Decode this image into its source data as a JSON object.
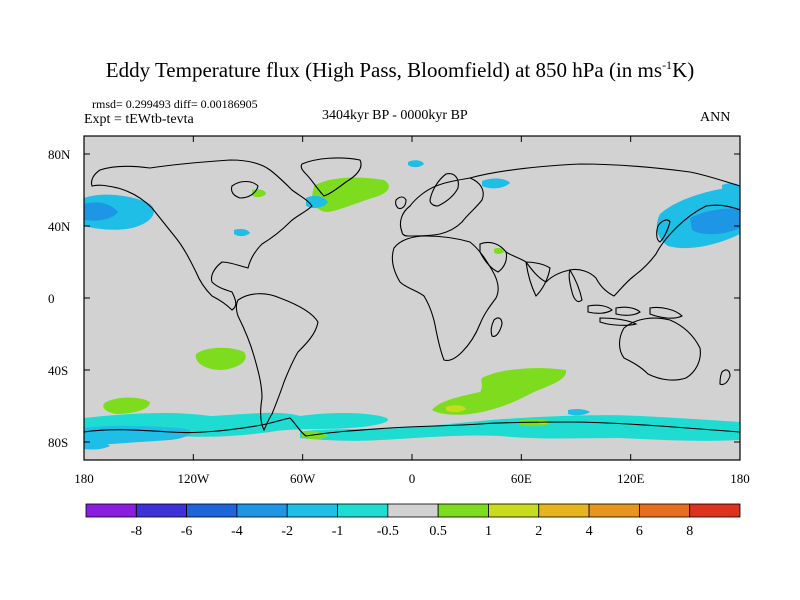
{
  "title_main": "Eddy Temperature flux (High Pass, Bloomfield) at 850 hPa (in ms",
  "title_sup": "-1",
  "title_end": "K)",
  "rmsd_line": "rmsd= 0.299493 diff= 0.00186905",
  "expt_line": "Expt = tEWtb-tevta",
  "period": "3404kyr BP - 0000kyr BP",
  "season": "ANN",
  "lat_labels": [
    "80N",
    "40N",
    "0",
    "40S",
    "80S"
  ],
  "lon_labels": [
    "180",
    "120W",
    "60W",
    "0",
    "60E",
    "120E",
    "180"
  ],
  "colorbar": {
    "colors": [
      "#8a1ee0",
      "#3c32d8",
      "#1e64dc",
      "#1e96e6",
      "#1ebee6",
      "#1edcd2",
      "#d2d2d2",
      "#7ddc1e",
      "#c8dc1e",
      "#e6b41e",
      "#e6961e",
      "#e66e1e",
      "#dc321e"
    ],
    "labels": [
      "-8",
      "-6",
      "-4",
      "-2",
      "-1",
      "-0.5",
      "0.5",
      "1",
      "2",
      "4",
      "6",
      "8"
    ]
  },
  "colors": {
    "land_ocean_fill": "#d2d2d2",
    "coast": "#000000"
  }
}
